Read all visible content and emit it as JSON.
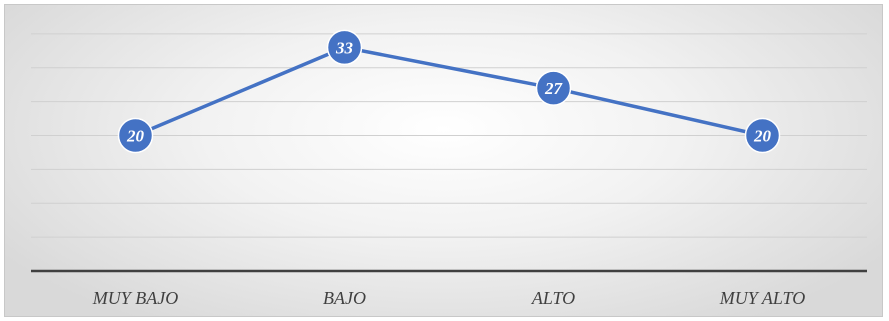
{
  "chart_data": {
    "type": "line",
    "categories": [
      "MUY BAJO",
      "BAJO",
      "ALTO",
      "MUY ALTO"
    ],
    "series": [
      {
        "values": [
          20,
          33,
          27,
          20
        ]
      }
    ],
    "ylim": [
      0,
      40
    ],
    "grid": true,
    "data_labels": true,
    "colors": {
      "line": "#4472c4",
      "marker": "#4472c4",
      "marker_edge": "#ffffff",
      "gridline": "#d0d0d0",
      "baseline": "#404040",
      "label": "#ffffff"
    }
  }
}
